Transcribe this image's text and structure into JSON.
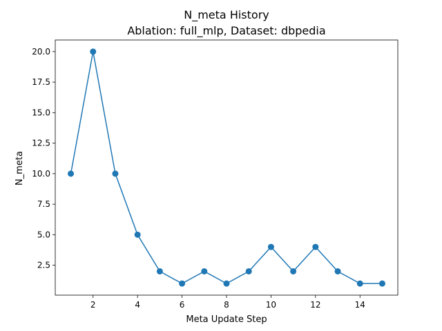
{
  "chart_data": {
    "type": "line",
    "title": "N_meta History",
    "subtitle": "Ablation: full_mlp, Dataset: dbpedia",
    "xlabel": "Meta Update Step",
    "ylabel": "N_meta",
    "x": [
      1,
      2,
      3,
      4,
      5,
      6,
      7,
      8,
      9,
      10,
      11,
      12,
      13,
      14,
      15
    ],
    "series": [
      {
        "values": [
          10,
          20,
          10,
          5,
          2,
          1,
          2,
          1,
          2,
          4,
          2,
          4,
          2,
          1,
          1
        ]
      }
    ],
    "xlim": [
      0.3,
      15.7
    ],
    "ylim": [
      0.05,
      20.95
    ],
    "x_ticks": [
      2,
      4,
      6,
      8,
      10,
      12,
      14
    ],
    "x_tick_labels": [
      "2",
      "4",
      "6",
      "8",
      "10",
      "12",
      "14"
    ],
    "y_ticks": [
      2.5,
      5.0,
      7.5,
      10.0,
      12.5,
      15.0,
      17.5,
      20.0
    ],
    "y_tick_labels": [
      "2.5",
      "5.0",
      "7.5",
      "10.0",
      "12.5",
      "15.0",
      "17.5",
      "20.0"
    ],
    "grid": false,
    "marker": "circle",
    "line_color": "#1f77b4"
  }
}
